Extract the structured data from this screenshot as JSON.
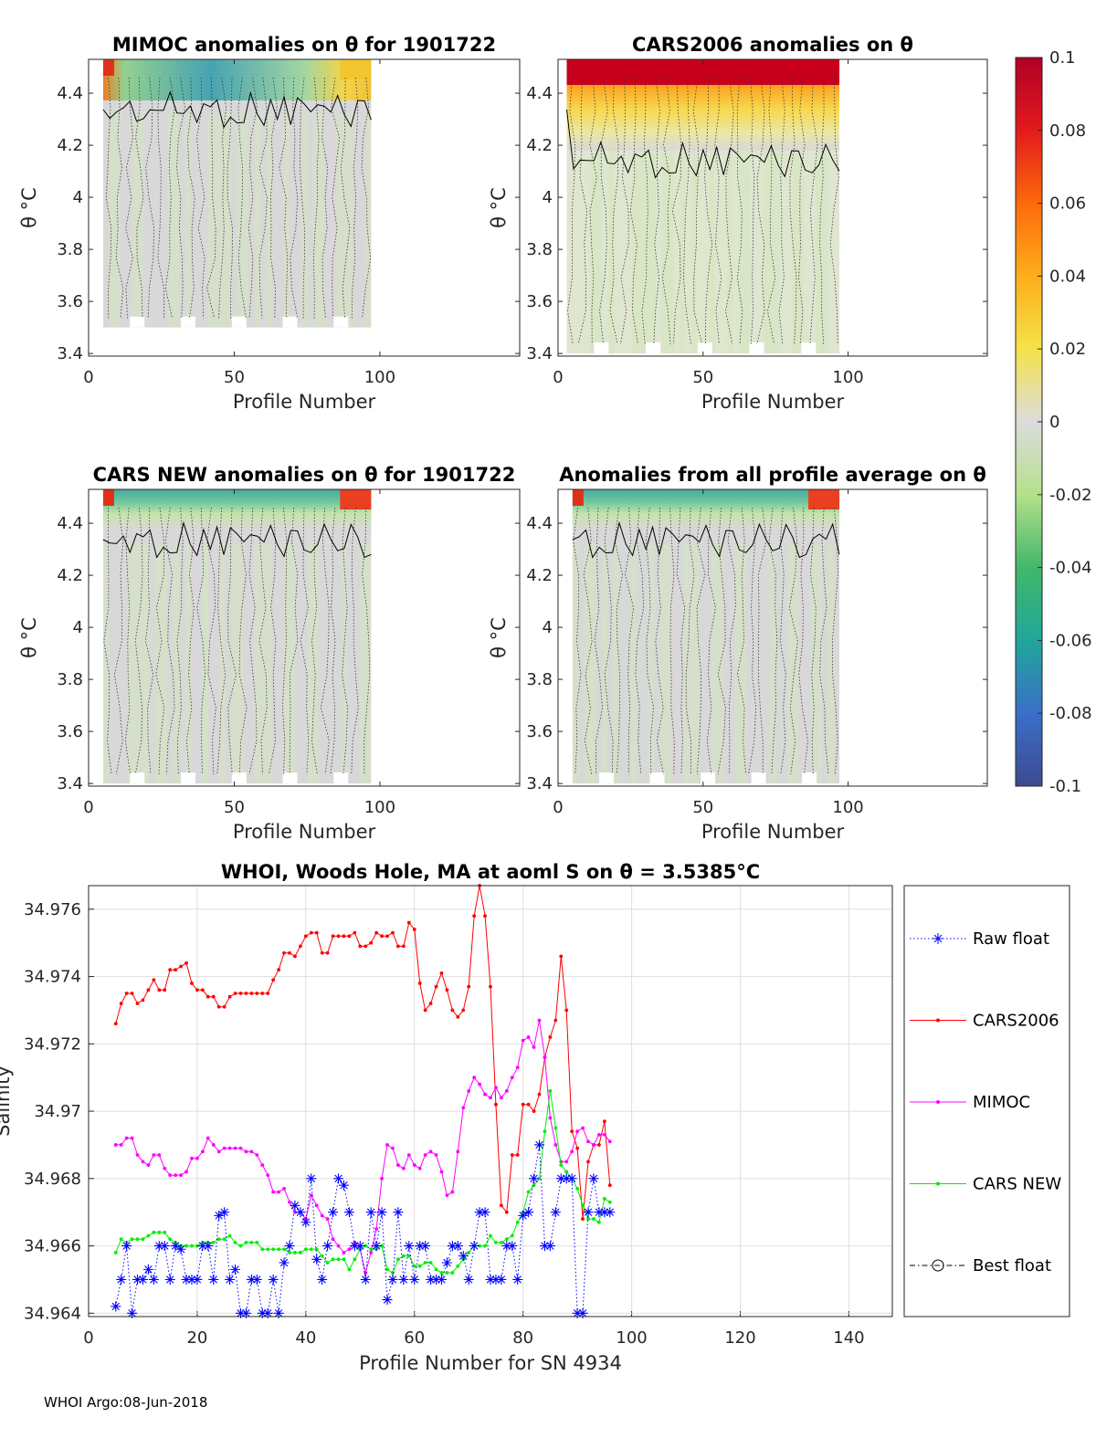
{
  "colors": {
    "raw": "#0000ff",
    "cars2006": "#ff0000",
    "mimoc": "#ff00ff",
    "carsnew": "#00ee00",
    "best": "#000000",
    "field": "#d8d8d8"
  },
  "heatmaps": [
    {
      "title": "MIMOC anomalies on θ  for 1901722",
      "ylabel": "θ °C",
      "xlabel": "Profile Number",
      "xticks": [
        "0",
        "50",
        "100"
      ],
      "yticks": [
        "4.4",
        "4.2",
        "4",
        "3.8",
        "3.6",
        "3.4"
      ],
      "xrange": [
        0,
        148
      ],
      "yrange": [
        3.39,
        4.53
      ],
      "profiles": [
        5,
        97
      ],
      "bottom": 3.5,
      "surface": "mixed",
      "interior": "neutral"
    },
    {
      "title": "CARS2006 anomalies on θ",
      "ylabel": "θ °C",
      "xlabel": "Profile Number",
      "xticks": [
        "0",
        "50",
        "100"
      ],
      "yticks": [
        "4.4",
        "4.2",
        "4",
        "3.8",
        "3.6",
        "3.4"
      ],
      "xrange": [
        0,
        148
      ],
      "yrange": [
        3.39,
        4.53
      ],
      "profiles": [
        3,
        97
      ],
      "bottom": 3.4,
      "surface": "warm",
      "interior": "slightly-cool"
    },
    {
      "title": "CARS NEW anomalies on θ for 1901722",
      "ylabel": "θ °C",
      "xlabel": "Profile Number",
      "xticks": [
        "0",
        "50",
        "100"
      ],
      "yticks": [
        "4.4",
        "4.2",
        "4",
        "3.8",
        "3.6",
        "3.4"
      ],
      "xrange": [
        0,
        148
      ],
      "yrange": [
        3.39,
        4.53
      ],
      "profiles": [
        5,
        97
      ],
      "bottom": 3.4,
      "surface": "cool",
      "interior": "neutral"
    },
    {
      "title": "Anomalies from all profile average on θ",
      "ylabel": "θ °C",
      "xlabel": "Profile Number",
      "xticks": [
        "0",
        "50",
        "100"
      ],
      "yticks": [
        "4.4",
        "4.2",
        "4",
        "3.8",
        "3.6",
        "3.4"
      ],
      "xrange": [
        0,
        148
      ],
      "yrange": [
        3.39,
        4.53
      ],
      "profiles": [
        5,
        97
      ],
      "bottom": 3.4,
      "surface": "cool",
      "interior": "neutral"
    }
  ],
  "colorbar": {
    "range": [
      -0.1,
      0.1
    ],
    "ticks": [
      "0.1",
      "0.08",
      "0.06",
      "0.04",
      "0.02",
      "0",
      "-0.02",
      "-0.04",
      "-0.06",
      "-0.08",
      "-0.1"
    ]
  },
  "chart_data": {
    "type": "line",
    "title": "WHOI, Woods Hole, MA at aoml S on θ = 3.5385°C",
    "xlabel": "Profile Number for SN 4934",
    "ylabel": "Salinity",
    "xlim": [
      0,
      148
    ],
    "ylim": [
      34.9639,
      34.9767
    ],
    "xticks": [
      "0",
      "20",
      "40",
      "60",
      "80",
      "100",
      "120",
      "140"
    ],
    "yticks": [
      "34.964",
      "34.966",
      "34.968",
      "34.97",
      "34.972",
      "34.974",
      "34.976"
    ],
    "x": [
      5,
      6,
      7,
      8,
      9,
      10,
      11,
      12,
      13,
      14,
      15,
      16,
      17,
      18,
      19,
      20,
      21,
      22,
      23,
      24,
      25,
      26,
      27,
      28,
      29,
      30,
      31,
      32,
      33,
      34,
      35,
      36,
      37,
      38,
      39,
      40,
      41,
      42,
      43,
      44,
      45,
      46,
      47,
      48,
      49,
      50,
      51,
      52,
      53,
      54,
      55,
      56,
      57,
      58,
      59,
      60,
      61,
      62,
      63,
      64,
      65,
      66,
      67,
      68,
      69,
      70,
      71,
      72,
      73,
      74,
      75,
      76,
      77,
      78,
      79,
      80,
      81,
      82,
      83,
      84,
      85,
      86,
      87,
      88,
      89,
      90,
      91,
      92,
      93,
      94,
      95,
      96
    ],
    "series": [
      {
        "name": "Raw float",
        "values": [
          34.9642,
          34.965,
          34.966,
          34.964,
          34.965,
          34.965,
          34.9653,
          34.965,
          34.966,
          34.966,
          34.965,
          34.966,
          34.9659,
          34.965,
          34.965,
          34.965,
          34.966,
          34.966,
          34.965,
          34.9669,
          34.967,
          34.965,
          34.9653,
          34.964,
          34.964,
          34.965,
          34.965,
          34.964,
          34.964,
          34.965,
          34.964,
          34.9655,
          34.966,
          34.9672,
          34.967,
          34.9667,
          34.968,
          34.9656,
          34.965,
          34.966,
          34.967,
          34.968,
          34.9678,
          34.967,
          34.966,
          34.966,
          34.965,
          34.967,
          34.966,
          34.967,
          34.9644,
          34.965,
          34.967,
          34.965,
          34.966,
          34.965,
          34.966,
          34.966,
          34.965,
          34.965,
          34.965,
          34.9655,
          34.966,
          34.966,
          34.9657,
          34.965,
          34.966,
          34.967,
          34.967,
          34.965,
          34.965,
          34.965,
          34.966,
          34.966,
          34.965,
          34.9669,
          34.967,
          34.968,
          34.969,
          34.966,
          34.966,
          34.967,
          34.968,
          34.968,
          34.968,
          34.964,
          34.964,
          34.967,
          34.968,
          34.967,
          34.967,
          34.967
        ]
      },
      {
        "name": "CARS2006",
        "values": [
          34.9726,
          34.9732,
          34.9735,
          34.9735,
          34.9732,
          34.9733,
          34.9736,
          34.9739,
          34.9736,
          34.9736,
          34.9742,
          34.9742,
          34.9743,
          34.9744,
          34.9738,
          34.9736,
          34.9736,
          34.9734,
          34.9734,
          34.9731,
          34.9731,
          34.9734,
          34.9735,
          34.9735,
          34.9735,
          34.9735,
          34.9735,
          34.9735,
          34.9735,
          34.9739,
          34.9742,
          34.9747,
          34.9747,
          34.9746,
          34.9749,
          34.9752,
          34.9753,
          34.9753,
          34.9747,
          34.9747,
          34.9752,
          34.9752,
          34.9752,
          34.9752,
          34.9753,
          34.9749,
          34.9749,
          34.975,
          34.9753,
          34.9752,
          34.9752,
          34.9753,
          34.9749,
          34.9749,
          34.9756,
          34.9754,
          34.9738,
          34.973,
          34.9732,
          34.9737,
          34.9741,
          34.9736,
          34.973,
          34.9728,
          34.973,
          34.9737,
          34.9758,
          34.9767,
          34.9758,
          34.9737,
          34.9702,
          34.9672,
          34.967,
          34.9687,
          34.9687,
          34.9702,
          34.9702,
          34.97,
          34.9705,
          34.9716,
          34.9722,
          34.9727,
          34.9746,
          34.973,
          34.9694,
          34.9689,
          34.9668,
          34.9685,
          34.969,
          34.969,
          34.9697,
          34.9678
        ]
      },
      {
        "name": "MIMOC",
        "values": [
          34.969,
          34.969,
          34.9692,
          34.9692,
          34.9687,
          34.9685,
          34.9684,
          34.9687,
          34.9687,
          34.9683,
          34.9681,
          34.9681,
          34.9681,
          34.9682,
          34.9686,
          34.9686,
          34.9688,
          34.9692,
          34.969,
          34.9688,
          34.9689,
          34.9689,
          34.9689,
          34.9689,
          34.9688,
          34.9688,
          34.9687,
          34.9684,
          34.9681,
          34.9676,
          34.9676,
          34.9677,
          34.9673,
          34.967,
          34.967,
          34.9668,
          34.9675,
          34.9672,
          34.9669,
          34.9668,
          34.9662,
          34.966,
          34.9658,
          34.9659,
          34.9661,
          34.9659,
          34.9652,
          34.9658,
          34.9665,
          34.968,
          34.969,
          34.9689,
          34.9684,
          34.9683,
          34.9687,
          34.9684,
          34.9683,
          34.9687,
          34.9688,
          34.9687,
          34.9682,
          34.9675,
          34.9676,
          34.9688,
          34.9701,
          34.9706,
          34.971,
          34.9708,
          34.9705,
          34.9704,
          34.9707,
          34.9704,
          34.9706,
          34.971,
          34.9713,
          34.9721,
          34.9722,
          34.9719,
          34.9727,
          34.9716,
          34.9698,
          34.969,
          34.9685,
          34.9685,
          34.9688,
          34.9694,
          34.9695,
          34.9691,
          34.969,
          34.9693,
          34.9693,
          34.9691
        ]
      },
      {
        "name": "CARS NEW",
        "values": [
          34.9658,
          34.9662,
          34.9661,
          34.9662,
          34.9662,
          34.9662,
          34.9663,
          34.9664,
          34.9664,
          34.9664,
          34.9662,
          34.9661,
          34.966,
          34.966,
          34.966,
          34.966,
          34.9661,
          34.9661,
          34.9661,
          34.9662,
          34.9662,
          34.9663,
          34.9661,
          34.966,
          34.9661,
          34.9661,
          34.9661,
          34.9659,
          34.9659,
          34.9659,
          34.9659,
          34.9659,
          34.9658,
          34.9658,
          34.9658,
          34.9659,
          34.9659,
          34.9659,
          34.9657,
          34.9655,
          34.9656,
          34.9656,
          34.9656,
          34.9653,
          34.9656,
          34.9659,
          34.966,
          34.9659,
          34.9659,
          34.966,
          34.9653,
          34.9652,
          34.9656,
          34.9657,
          34.9657,
          34.9654,
          34.9654,
          34.9655,
          34.9655,
          34.9653,
          34.9652,
          34.9652,
          34.9652,
          34.9654,
          34.9656,
          34.9658,
          34.966,
          34.966,
          34.966,
          34.9663,
          34.9661,
          34.9661,
          34.9662,
          34.9663,
          34.9667,
          34.967,
          34.9676,
          34.9678,
          34.968,
          34.9694,
          34.9706,
          34.9695,
          34.9684,
          34.9682,
          34.968,
          34.9677,
          34.9672,
          34.9668,
          34.9668,
          34.9667,
          34.9674,
          34.9673
        ]
      }
    ],
    "legend": [
      "Raw float",
      "CARS2006",
      "MIMOC",
      "CARS NEW",
      "Best float"
    ],
    "legend_position": "outside-right",
    "grid": true
  },
  "footer": "WHOI Argo:08-Jun-2018"
}
